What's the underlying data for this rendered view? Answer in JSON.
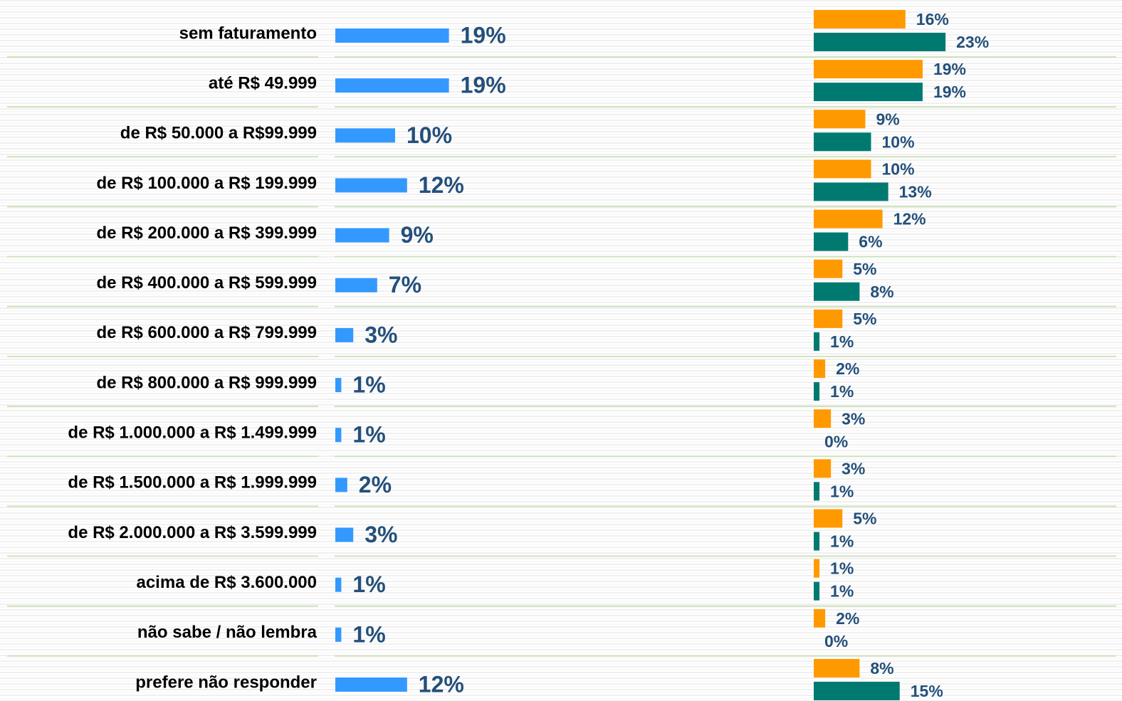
{
  "chart_data": {
    "type": "bar",
    "categories": [
      "sem faturamento",
      "até R$ 49.999",
      "de R$ 50.000 a R$99.999",
      "de R$ 100.000 a R$ 199.999",
      "de R$ 200.000 a R$ 399.999",
      "de R$ 400.000 a R$ 599.999",
      "de R$ 600.000 a R$ 799.999",
      "de R$ 800.000 a R$ 999.999",
      "de R$ 1.000.000 a R$ 1.499.999",
      "de R$ 1.500.000 a R$ 1.999.999",
      "de R$ 2.000.000 a R$ 3.599.999",
      "acima de R$ 3.600.000",
      "não sabe / não lembra",
      "prefere não responder"
    ],
    "series": [
      {
        "color": "#3399ff",
        "values": [
          19,
          19,
          10,
          12,
          9,
          7,
          3,
          1,
          1,
          2,
          3,
          1,
          1,
          12
        ],
        "value_labels": [
          "19%",
          "19%",
          "10%",
          "12%",
          "9%",
          "7%",
          "3%",
          "1%",
          "1%",
          "2%",
          "3%",
          "1%",
          "1%",
          "12%"
        ]
      },
      {
        "color": "#ff9900",
        "values": [
          16,
          19,
          9,
          10,
          12,
          5,
          5,
          2,
          3,
          3,
          5,
          1,
          2,
          8
        ],
        "value_labels": [
          "16%",
          "19%",
          "9%",
          "10%",
          "12%",
          "5%",
          "5%",
          "2%",
          "3%",
          "3%",
          "5%",
          "1%",
          "2%",
          "8%"
        ]
      },
      {
        "color": "#007a70",
        "values": [
          23,
          19,
          10,
          13,
          6,
          8,
          1,
          1,
          0,
          1,
          1,
          1,
          0,
          15
        ],
        "value_labels": [
          "23%",
          "19%",
          "10%",
          "13%",
          "6%",
          "8%",
          "1%",
          "1%",
          "0%",
          "1%",
          "1%",
          "1%",
          "0%",
          "15%"
        ]
      }
    ]
  }
}
